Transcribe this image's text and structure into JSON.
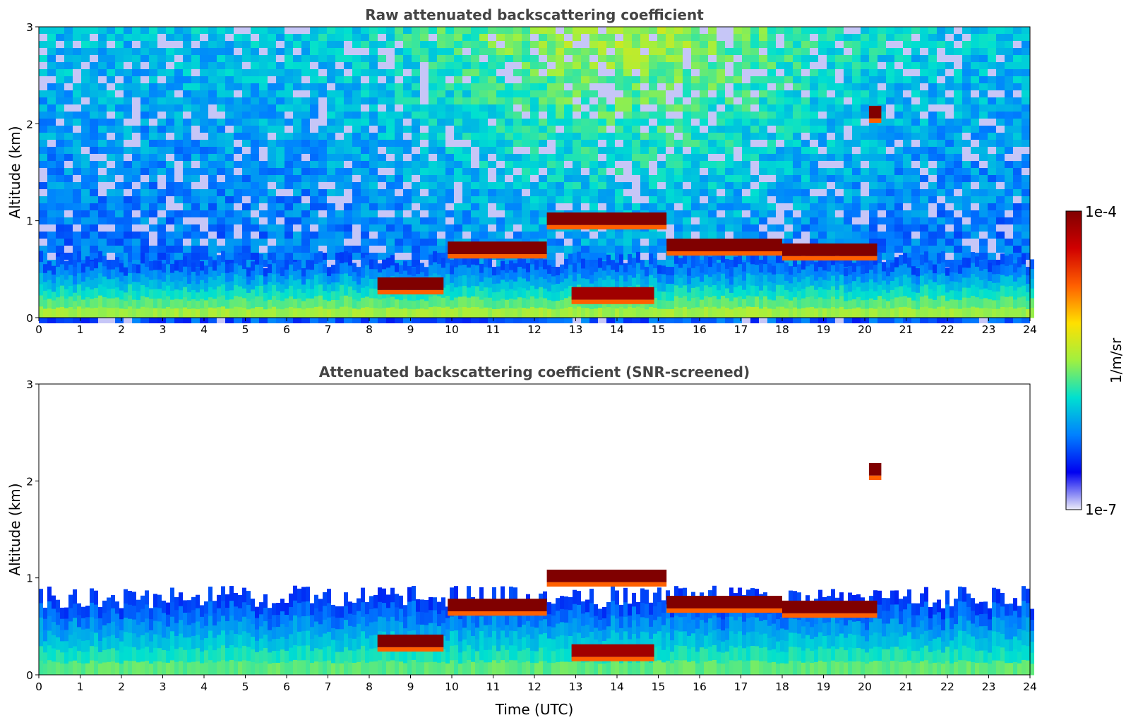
{
  "chart_data": [
    {
      "type": "heatmap",
      "title": "Raw attenuated backscattering coefficient",
      "xlabel": "",
      "ylabel": "Altitude (km)",
      "xlim": [
        0,
        24
      ],
      "ylim": [
        0,
        3
      ],
      "xticks": [
        "0",
        "1",
        "2",
        "3",
        "4",
        "5",
        "6",
        "7",
        "8",
        "9",
        "10",
        "11",
        "12",
        "13",
        "14",
        "15",
        "16",
        "17",
        "18",
        "19",
        "20",
        "21",
        "22",
        "23",
        "24"
      ],
      "yticks": [
        "0",
        "1",
        "2",
        "3"
      ],
      "screened": false,
      "features": [
        {
          "name": "aerosol-layer",
          "t_start": 0,
          "t_end": 24,
          "alt_top_km": 0.6,
          "level": 0.4
        },
        {
          "name": "cloud-low-morning",
          "t_start": 8.2,
          "t_end": 9.8,
          "alt_km": 0.35,
          "level": 1.0
        },
        {
          "name": "cloud-morning",
          "t_start": 9.9,
          "t_end": 12.3,
          "alt_km": 0.72,
          "level": 1.0
        },
        {
          "name": "cloud-midday",
          "t_start": 12.3,
          "t_end": 15.2,
          "alt_km": 1.02,
          "level": 1.0
        },
        {
          "name": "cloud-afternoon",
          "t_start": 15.2,
          "t_end": 18.0,
          "alt_km": 0.75,
          "level": 1.0
        },
        {
          "name": "cloud-evening",
          "t_start": 18.0,
          "t_end": 20.3,
          "alt_km": 0.7,
          "level": 1.0
        },
        {
          "name": "cloud-elevated",
          "t_start": 20.1,
          "t_end": 20.4,
          "alt_km": 2.12,
          "level": 1.0
        },
        {
          "name": "cloud-low-broken",
          "t_start": 12.9,
          "t_end": 14.9,
          "alt_km": 0.25,
          "level": 0.95
        }
      ]
    },
    {
      "type": "heatmap",
      "title": "Attenuated backscattering coefficient (SNR-screened)",
      "xlabel": "Time (UTC)",
      "ylabel": "Altitude (km)",
      "xlim": [
        0,
        24
      ],
      "ylim": [
        0,
        3
      ],
      "xticks": [
        "0",
        "1",
        "2",
        "3",
        "4",
        "5",
        "6",
        "7",
        "8",
        "9",
        "10",
        "11",
        "12",
        "13",
        "14",
        "15",
        "16",
        "17",
        "18",
        "19",
        "20",
        "21",
        "22",
        "23",
        "24"
      ],
      "yticks": [
        "0",
        "1",
        "2",
        "3"
      ],
      "screened": true,
      "features": [
        {
          "name": "aerosol-layer",
          "t_start": 0,
          "t_end": 24,
          "alt_top_km": 0.8,
          "level": 0.35
        },
        {
          "name": "cloud-low-morning",
          "t_start": 8.2,
          "t_end": 9.8,
          "alt_km": 0.35,
          "level": 1.0
        },
        {
          "name": "cloud-morning",
          "t_start": 9.9,
          "t_end": 12.3,
          "alt_km": 0.72,
          "level": 1.0
        },
        {
          "name": "cloud-midday",
          "t_start": 12.3,
          "t_end": 15.2,
          "alt_km": 1.02,
          "level": 1.0
        },
        {
          "name": "cloud-afternoon",
          "t_start": 15.2,
          "t_end": 18.0,
          "alt_km": 0.75,
          "level": 1.0
        },
        {
          "name": "cloud-evening",
          "t_start": 18.0,
          "t_end": 20.3,
          "alt_km": 0.7,
          "level": 1.0
        },
        {
          "name": "cloud-elevated",
          "t_start": 20.1,
          "t_end": 20.4,
          "alt_km": 2.12,
          "level": 1.0
        },
        {
          "name": "cloud-low-broken",
          "t_start": 12.9,
          "t_end": 14.9,
          "alt_km": 0.25,
          "level": 0.95
        }
      ]
    }
  ],
  "colorbar": {
    "label": "1/m/sr",
    "max_label": "1e-4",
    "min_label": "1e-7",
    "colors": [
      "#ececf8",
      "#0000f0",
      "#0080ff",
      "#00e0d0",
      "#a0f040",
      "#ffe000",
      "#ff6000",
      "#d00000",
      "#800000"
    ]
  }
}
